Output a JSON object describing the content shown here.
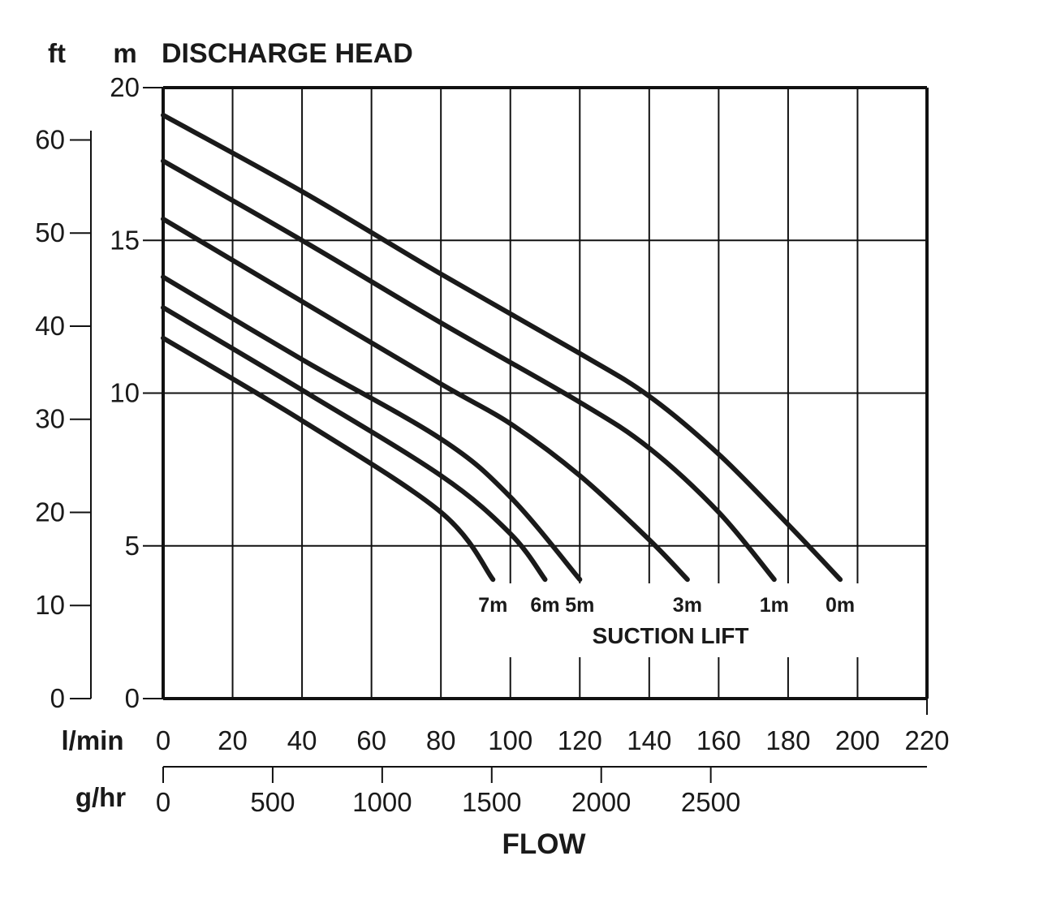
{
  "chart_data": {
    "type": "line",
    "title": "DISCHARGE HEAD",
    "ylabel_primary_unit": "m",
    "ylabel_secondary_unit": "ft",
    "xlabel": "FLOW",
    "xlabel_primary_unit": "l/min",
    "xlabel_secondary_unit": "g/hr",
    "series_group_label": "SUCTION LIFT",
    "xlim": [
      0,
      220
    ],
    "ylim": [
      0,
      20
    ],
    "x_ticks": [
      "0",
      "20",
      "40",
      "60",
      "80",
      "100",
      "120",
      "140",
      "160",
      "180",
      "200",
      "220"
    ],
    "y_ticks": [
      "0",
      "5",
      "10",
      "15",
      "20"
    ],
    "ft_ticks": [
      "0",
      "10",
      "20",
      "30",
      "40",
      "50",
      "60"
    ],
    "ghr_ticks": [
      "0",
      "500",
      "1000",
      "1500",
      "2000",
      "2500"
    ],
    "grid": true,
    "series": [
      {
        "name": "0m",
        "x": [
          0,
          40,
          80,
          120,
          140,
          160,
          180,
          195
        ],
        "y": [
          19.1,
          16.6,
          13.9,
          11.3,
          9.9,
          8.0,
          5.7,
          3.9
        ]
      },
      {
        "name": "1m",
        "x": [
          0,
          40,
          80,
          120,
          140,
          160,
          176
        ],
        "y": [
          17.6,
          15.0,
          12.3,
          9.7,
          8.2,
          6.1,
          3.9
        ]
      },
      {
        "name": "3m",
        "x": [
          0,
          40,
          80,
          100,
          120,
          140,
          151
        ],
        "y": [
          15.7,
          13.0,
          10.3,
          9.0,
          7.3,
          5.2,
          3.9
        ]
      },
      {
        "name": "5m",
        "x": [
          0,
          40,
          80,
          100,
          120
        ],
        "y": [
          13.8,
          11.1,
          8.5,
          6.6,
          3.9
        ]
      },
      {
        "name": "6m",
        "x": [
          0,
          40,
          80,
          100,
          110
        ],
        "y": [
          12.8,
          10.1,
          7.3,
          5.4,
          3.9
        ]
      },
      {
        "name": "7m",
        "x": [
          0,
          40,
          80,
          95
        ],
        "y": [
          11.8,
          9.1,
          6.1,
          3.9
        ]
      }
    ]
  }
}
